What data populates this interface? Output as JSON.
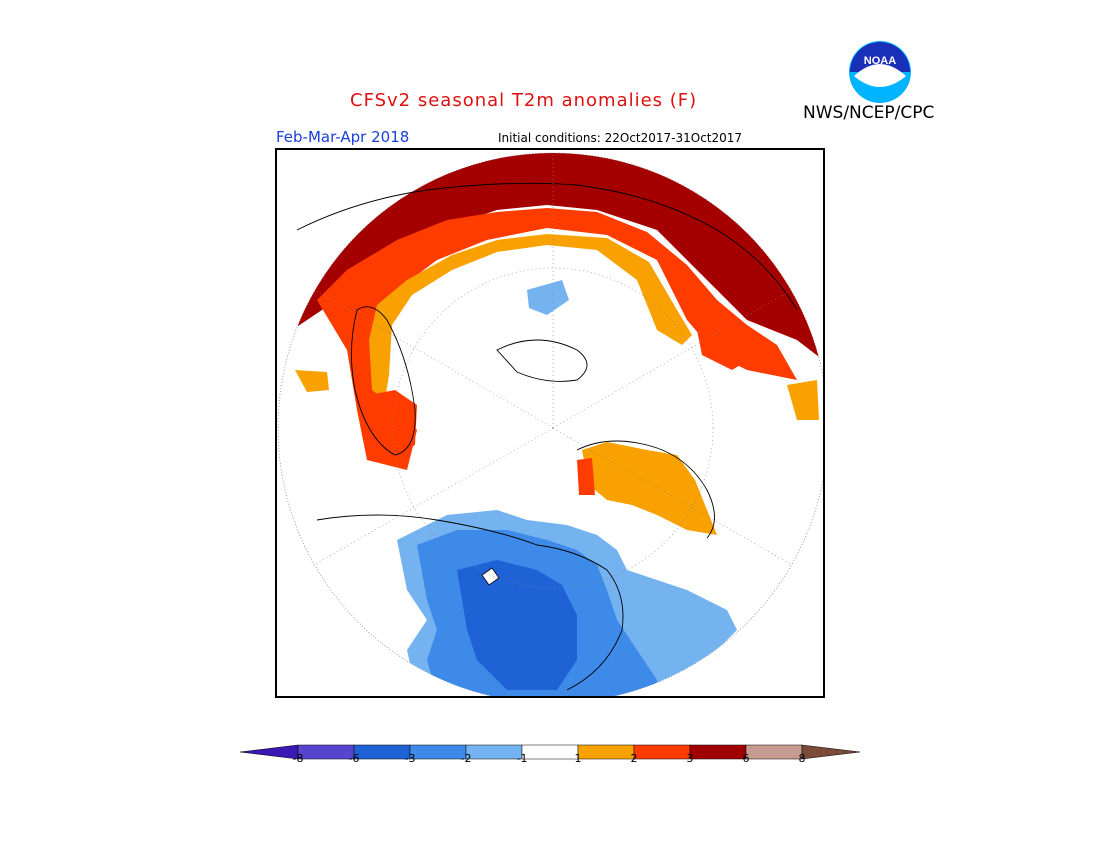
{
  "header": {
    "title": "CFSv2 seasonal T2m anomalies (F)",
    "org": "NWS/NCEP/CPC",
    "period": "Feb-Mar-Apr 2018",
    "initial_conditions": "Initial conditions: 22Oct2017-31Oct2017"
  },
  "logo": {
    "text": "NOAA",
    "outer_color": "#00b4ff",
    "inner_color": "#1a2fb8"
  },
  "legend": {
    "labels": [
      "-8",
      "-6",
      "-3",
      "-2",
      "-1",
      "1",
      "2",
      "3",
      "6",
      "8"
    ],
    "colors": [
      "#3b18b4",
      "#5744cf",
      "#1f62d6",
      "#3d8ae8",
      "#74b2f0",
      "#ffffff",
      "#f9a100",
      "#ff3c00",
      "#a00000",
      "#c69c90",
      "#7b4a3a"
    ]
  },
  "map": {
    "projection": "polar-stereographic",
    "colors": {
      "darkred": "#a40000",
      "red": "#ff3c00",
      "orange": "#f9a100",
      "lightblue": "#74b2f0",
      "blue": "#3d8ae8",
      "darkblue": "#1f62d6"
    }
  }
}
